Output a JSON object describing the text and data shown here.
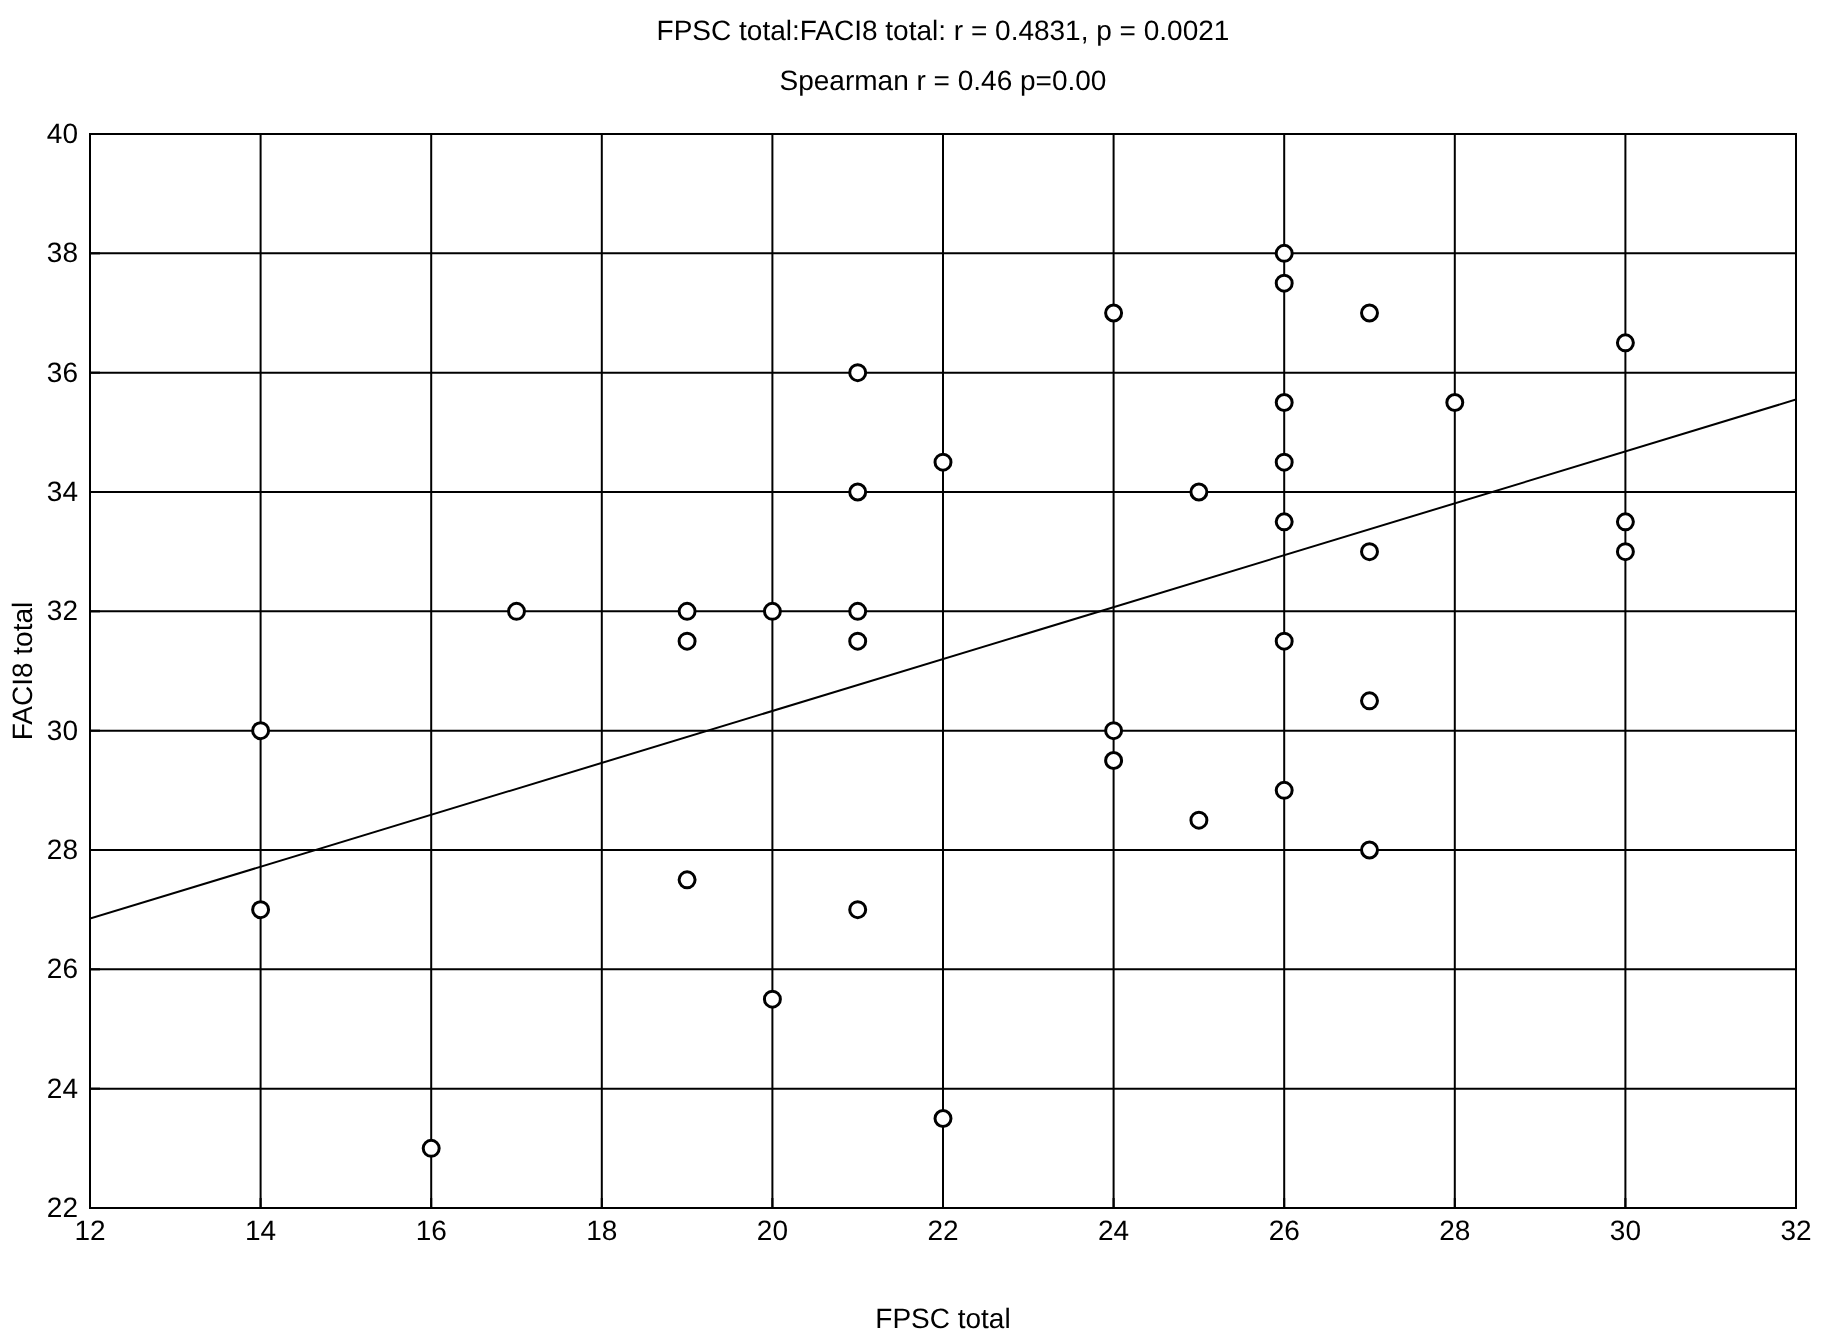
{
  "chart_data": {
    "type": "scatter",
    "title": "FPSC total:FACI8 total:    r = 0.4831, p = 0.0021",
    "subtitle": "Spearman r = 0.46 p=0.00",
    "xlabel": "FPSC total",
    "ylabel": "FACI8 total",
    "xlim": [
      12,
      32
    ],
    "xticks": [
      12,
      14,
      16,
      18,
      20,
      22,
      24,
      26,
      28,
      30,
      32
    ],
    "ylim": [
      22,
      40
    ],
    "yticks": [
      22,
      24,
      26,
      28,
      30,
      32,
      34,
      36,
      38,
      40
    ],
    "grid": true,
    "marker": "circle",
    "series": [
      {
        "type": "scatter",
        "color": "#000000",
        "x": [
          14,
          14,
          16,
          17,
          19,
          19,
          19,
          20,
          20,
          21,
          21,
          21,
          21,
          21,
          22,
          22,
          24,
          24,
          24,
          25,
          25,
          26,
          26,
          26,
          26,
          26,
          26,
          26,
          27,
          27,
          27,
          27,
          28,
          30,
          30,
          30
        ],
        "values": [
          30,
          27,
          23,
          32,
          32,
          31.5,
          27.5,
          32,
          25.5,
          36,
          34,
          32,
          31.5,
          27,
          34.5,
          23.5,
          37,
          30,
          29.5,
          34,
          28.5,
          38,
          37.5,
          35.5,
          34.5,
          33.5,
          31.5,
          29,
          37,
          33,
          30.5,
          28,
          35.5,
          36.5,
          33.5,
          33
        ]
      },
      {
        "type": "line",
        "color": "#000000",
        "marker": "none",
        "x": [
          12,
          32
        ],
        "values": [
          26.85,
          35.55
        ]
      }
    ]
  }
}
